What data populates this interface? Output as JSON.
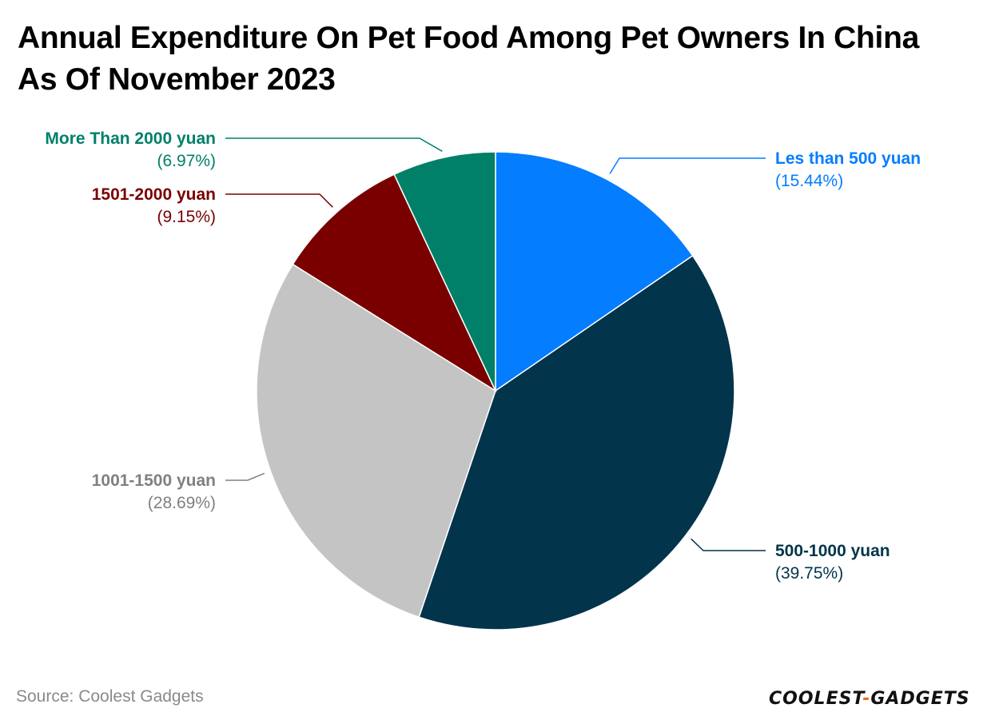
{
  "title": "Annual Expenditure On Pet Food Among Pet Owners In China As Of November 2023",
  "source": "Source: Coolest Gadgets",
  "logo": {
    "left": "COOLEST",
    "dash": "-",
    "right": "GADGETS"
  },
  "chart_data": {
    "type": "pie",
    "title": "Annual Expenditure On Pet Food Among Pet Owners In China As Of November 2023",
    "slices": [
      {
        "label": "Les than 500 yuan",
        "value": 15.44,
        "pct_label": "(15.44%)",
        "color": "#047DFF",
        "text_color": "#047DFF"
      },
      {
        "label": "500-1000 yuan",
        "value": 39.75,
        "pct_label": "(39.75%)",
        "color": "#02344C",
        "text_color": "#02344C"
      },
      {
        "label": "1001-1500 yuan",
        "value": 28.69,
        "pct_label": "(28.69%)",
        "color": "#C4C4C4",
        "text_color": "#808080"
      },
      {
        "label": "1501-2000 yuan",
        "value": 9.15,
        "pct_label": "(9.15%)",
        "color": "#7A0000",
        "text_color": "#7A0000"
      },
      {
        "label": "More Than 2000 yuan",
        "value": 6.97,
        "pct_label": "(6.97%)",
        "color": "#008069",
        "text_color": "#008069"
      }
    ],
    "start": "12 o'clock",
    "direction": "clockwise",
    "legend": "none (leader-line labels)"
  }
}
